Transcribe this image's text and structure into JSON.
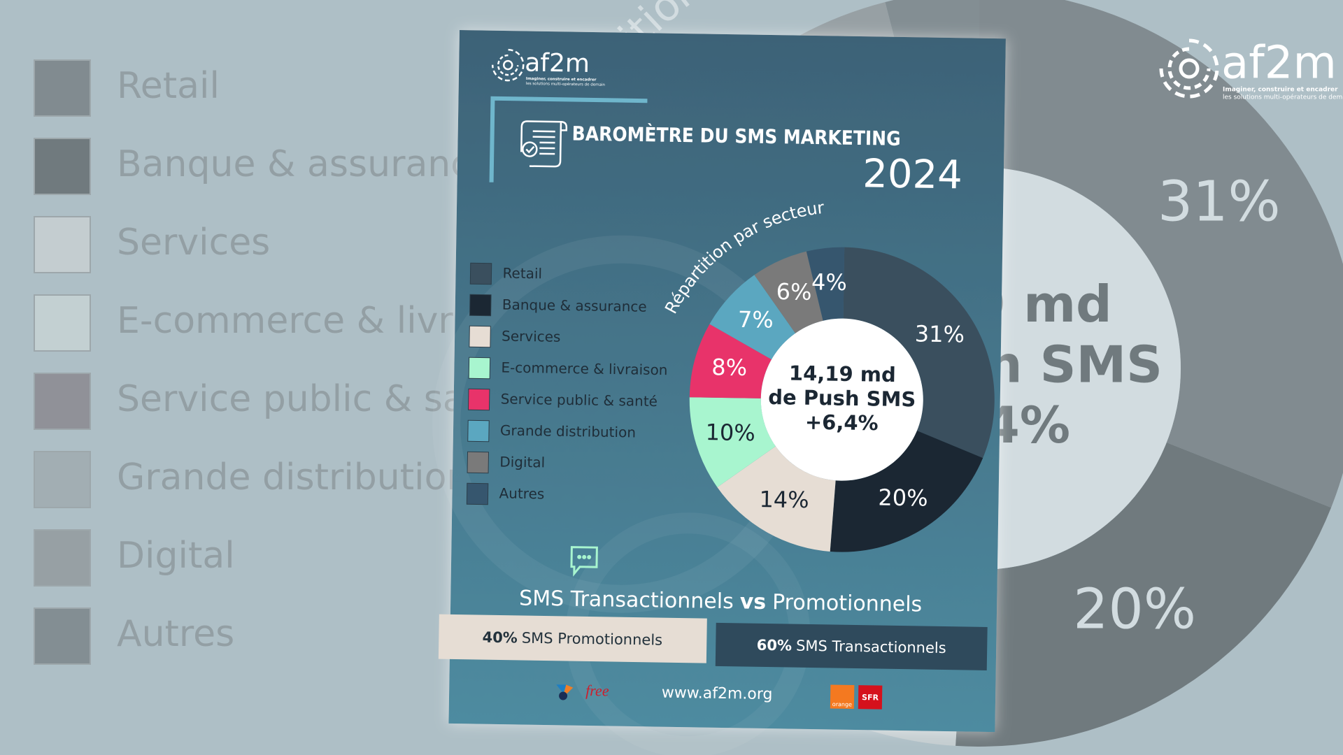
{
  "logo": {
    "name": "af2m",
    "tagline": [
      "Imaginer, construire et encadrer",
      "les solutions multi-opérateurs de demain"
    ]
  },
  "header": {
    "title": "BAROMÈTRE DU SMS MARKETING",
    "year": "2024"
  },
  "chart_data": {
    "type": "pie",
    "title": "Répartition par secteur",
    "categories": [
      "Retail",
      "Banque & assurance",
      "Services",
      "E-commerce & livraison",
      "Service public & santé",
      "Grande distribution",
      "Digital",
      "Autres"
    ],
    "values": [
      31,
      20,
      14,
      10,
      8,
      7,
      6,
      4
    ],
    "value_labels": [
      "31%",
      "20%",
      "14%",
      "10%",
      "8%",
      "7%",
      "6%",
      "4%"
    ],
    "colors": [
      "#3a4f5e",
      "#1b2733",
      "#e6ddd4",
      "#a8f5cf",
      "#e8336a",
      "#5ba7c0",
      "#7a7a7a",
      "#36566e"
    ],
    "center_text": [
      "14,19 md",
      "de Push SMS",
      "+6,4%"
    ]
  },
  "split": {
    "heading": [
      "SMS Transactionnels",
      "vs",
      "Promotionnels"
    ],
    "parts": [
      {
        "share": "40%",
        "label": "SMS Promotionnels"
      },
      {
        "share": "60%",
        "label": "SMS Transactionnels"
      }
    ]
  },
  "footer": {
    "url": "www.af2m.org",
    "operators": [
      "free",
      "orange",
      "SFR"
    ]
  }
}
